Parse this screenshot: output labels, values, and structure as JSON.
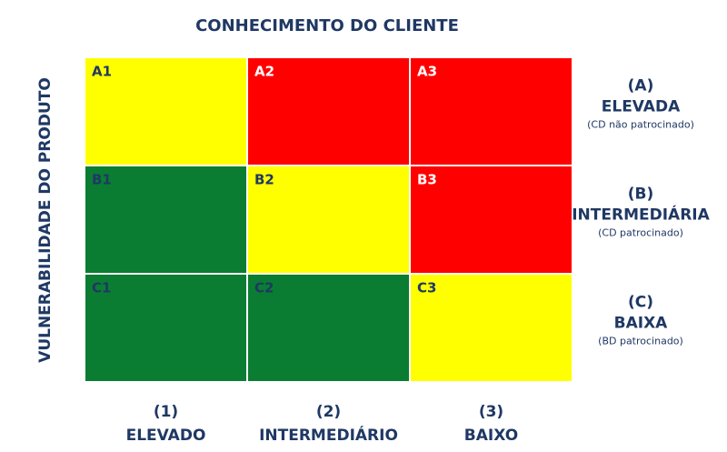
{
  "title": "CONHECIMENTO DO CLIENTE",
  "side_label": "VULNERABILIDADE DO PRODUTO",
  "columns": [
    {
      "number": "(1)",
      "label": "ELEVADO"
    },
    {
      "number": "(2)",
      "label": "INTERMEDIÁRIO"
    },
    {
      "number": "(3)",
      "label": "BAIXO"
    }
  ],
  "rows": [
    {
      "letter": "(A)",
      "label": "ELEVADA",
      "note": "(CD não patrocinado)"
    },
    {
      "letter": "(B)",
      "label": "INTERMEDIÁRIA",
      "note": "(CD patrocinado)"
    },
    {
      "letter": "(C)",
      "label": "BAIXA",
      "note": "(BD patrocinado)"
    }
  ],
  "cells": [
    [
      {
        "label": "A1",
        "color": "#ffff00"
      },
      {
        "label": "A2",
        "color": "#ff0000"
      },
      {
        "label": "A3",
        "color": "#ff0000"
      }
    ],
    [
      {
        "label": "B1",
        "color": "#0a7d32"
      },
      {
        "label": "B2",
        "color": "#ffff00"
      },
      {
        "label": "B3",
        "color": "#ff0000"
      }
    ],
    [
      {
        "label": "C1",
        "color": "#0a7d32"
      },
      {
        "label": "C2",
        "color": "#0a7d32"
      },
      {
        "label": "C3",
        "color": "#ffff00"
      }
    ]
  ]
}
